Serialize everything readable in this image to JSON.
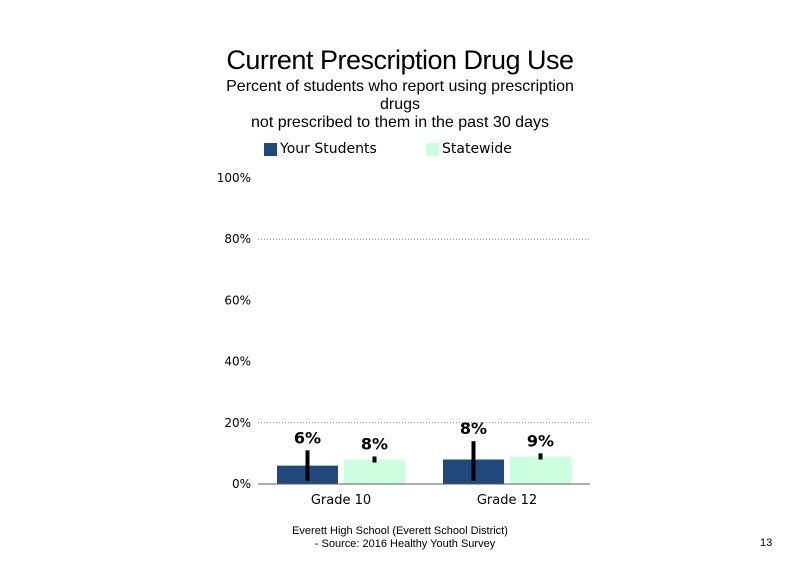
{
  "chart_data": {
    "type": "bar",
    "title": "Current Prescription Drug Use",
    "subtitle_lines": [
      "Percent of students  who report using prescription",
      "drugs",
      "not prescribed to them in the past 30 days"
    ],
    "categories": [
      "Grade 10",
      "Grade 12"
    ],
    "series": [
      {
        "name": "Your Students",
        "color": "#1f497d",
        "values": [
          6,
          8
        ],
        "labels": [
          "6%",
          "8%"
        ],
        "error_bars": [
          [
            1,
            11
          ],
          [
            1,
            14
          ]
        ]
      },
      {
        "name": "Statewide",
        "color": "#ccffdd",
        "values": [
          8,
          9
        ],
        "labels": [
          "8%",
          "9%"
        ],
        "error_bars": [
          [
            7,
            9
          ],
          [
            8,
            10
          ]
        ]
      }
    ],
    "y_ticks": [
      "0%",
      "20%",
      "40%",
      "60%",
      "80%",
      "100%"
    ],
    "ylim": [
      0,
      100
    ],
    "grid": "dotted horizontal lines at 20% and 80%",
    "legend_position": "top"
  },
  "footer": {
    "line1": "Everett High  School (Everett School District)",
    "line2": "- Source: 2016 Healthy  Youth Survey"
  },
  "page_number": "13"
}
